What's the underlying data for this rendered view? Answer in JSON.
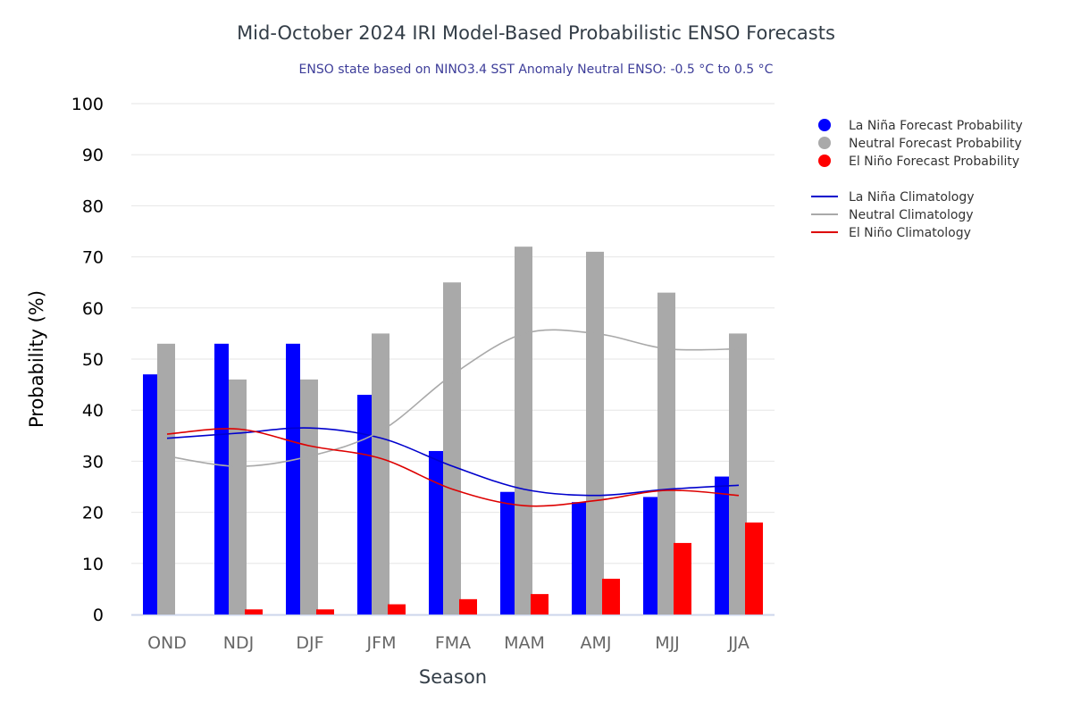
{
  "chart_data": {
    "type": "bar",
    "title": "Mid-October 2024 IRI Model-Based Probabilistic ENSO Forecasts",
    "subtitle": "ENSO state based on NINO3.4 SST Anomaly Neutral ENSO: -0.5 °C to 0.5 °C",
    "xlabel": "Season",
    "ylabel": "Probability (%)",
    "ylim": [
      0,
      100
    ],
    "yticks": [
      0,
      10,
      20,
      30,
      40,
      50,
      60,
      70,
      80,
      90,
      100
    ],
    "grid": true,
    "legend_placement": "right",
    "categories": [
      "OND",
      "NDJ",
      "DJF",
      "JFM",
      "FMA",
      "MAM",
      "AMJ",
      "MJJ",
      "JJA"
    ],
    "series": [
      {
        "name": "La Niña Forecast Probability",
        "kind": "bar",
        "color": "#0000ff",
        "values": [
          47,
          53,
          53,
          43,
          32,
          24,
          22,
          23,
          27
        ]
      },
      {
        "name": "Neutral Forecast Probability",
        "kind": "bar",
        "color": "#a9a9a9",
        "values": [
          53,
          46,
          46,
          55,
          65,
          72,
          71,
          63,
          55
        ]
      },
      {
        "name": "El Niño Forecast Probability",
        "kind": "bar",
        "color": "#ff0000",
        "values": [
          0,
          1,
          1,
          2,
          3,
          4,
          7,
          14,
          18
        ]
      },
      {
        "name": "La Niña Climatology",
        "kind": "line",
        "color": "#0000cc",
        "values": [
          34.5,
          35.5,
          36.5,
          34.5,
          29,
          24.5,
          23.3,
          24.5,
          25.3
        ]
      },
      {
        "name": "Neutral Climatology",
        "kind": "line",
        "color": "#a9a9a9",
        "values": [
          31,
          29,
          31,
          36,
          47,
          55,
          55,
          52,
          52
        ]
      },
      {
        "name": "El Niño Climatology",
        "kind": "line",
        "color": "#dd0000",
        "values": [
          35.3,
          36.3,
          33,
          30.5,
          24.5,
          21.3,
          22.3,
          24.3,
          23.3
        ]
      }
    ]
  }
}
